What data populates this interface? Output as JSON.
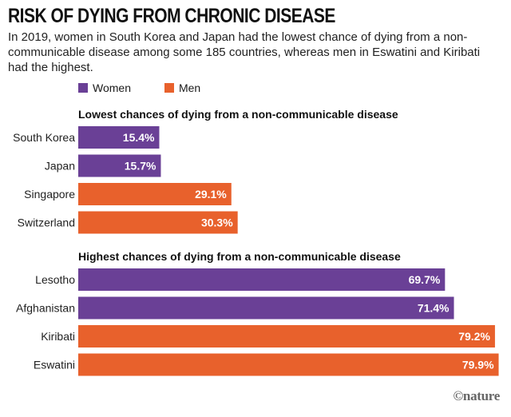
{
  "header": {
    "title": "RISK OF DYING FROM CHRONIC DISEASE",
    "subtitle": "In 2019, women in South Korea and Japan had the lowest chance of dying from a non-communicable disease among some 185 countries, whereas men in Eswatini and Kiribati had the highest."
  },
  "legend": {
    "items": [
      {
        "label": "Women",
        "color": "#6a4096"
      },
      {
        "label": "Men",
        "color": "#e8612c"
      }
    ]
  },
  "credit": "©nature",
  "chart_data": [
    {
      "type": "bar",
      "orientation": "horizontal",
      "title": "Lowest chances of dying from a non-communicable disease",
      "categories": [
        "South Korea",
        "Japan",
        "Singapore",
        "Switzerland"
      ],
      "values": [
        15.4,
        15.7,
        29.1,
        30.3
      ],
      "value_labels": [
        "15.4%",
        "15.7%",
        "29.1%",
        "30.3%"
      ],
      "series_groups": [
        "Women",
        "Women",
        "Men",
        "Men"
      ],
      "xlim": [
        0,
        80
      ]
    },
    {
      "type": "bar",
      "orientation": "horizontal",
      "title": "Highest chances of dying from a non-communicable disease",
      "categories": [
        "Lesotho",
        "Afghanistan",
        "Kiribati",
        "Eswatini"
      ],
      "values": [
        69.7,
        71.4,
        79.2,
        79.9
      ],
      "value_labels": [
        "69.7%",
        "71.4%",
        "79.2%",
        "79.9%"
      ],
      "series_groups": [
        "Women",
        "Women",
        "Men",
        "Men"
      ],
      "xlim": [
        0,
        80
      ]
    }
  ]
}
